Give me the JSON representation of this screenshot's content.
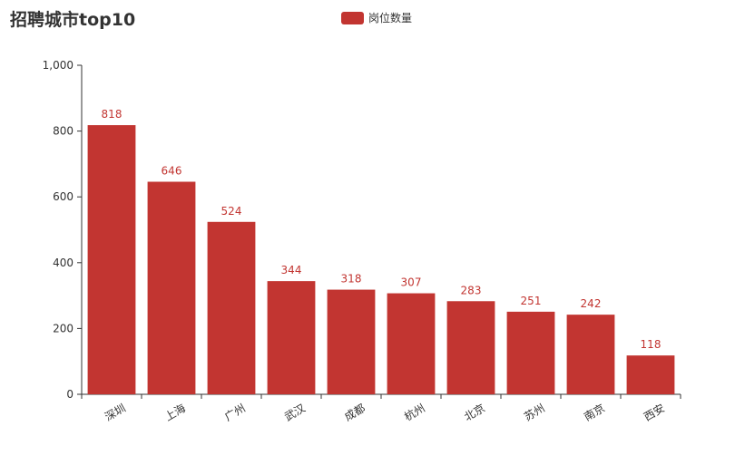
{
  "chart_data": {
    "type": "bar",
    "title": "招聘城市top10",
    "xlabel": "",
    "ylabel": "",
    "categories": [
      "深圳",
      "上海",
      "广州",
      "武汉",
      "成都",
      "杭州",
      "北京",
      "苏州",
      "南京",
      "西安"
    ],
    "series": [
      {
        "name": "岗位数量",
        "values": [
          818,
          646,
          524,
          344,
          318,
          307,
          283,
          251,
          242,
          118
        ],
        "color": "#c23531"
      }
    ],
    "ylim": [
      0,
      1000
    ],
    "yticks": [
      0,
      200,
      400,
      600,
      800,
      1000
    ],
    "ytick_labels": [
      "0",
      "200",
      "400",
      "600",
      "800",
      "1,000"
    ],
    "grid": false,
    "legend_position": "top-center",
    "data_labels": true
  }
}
